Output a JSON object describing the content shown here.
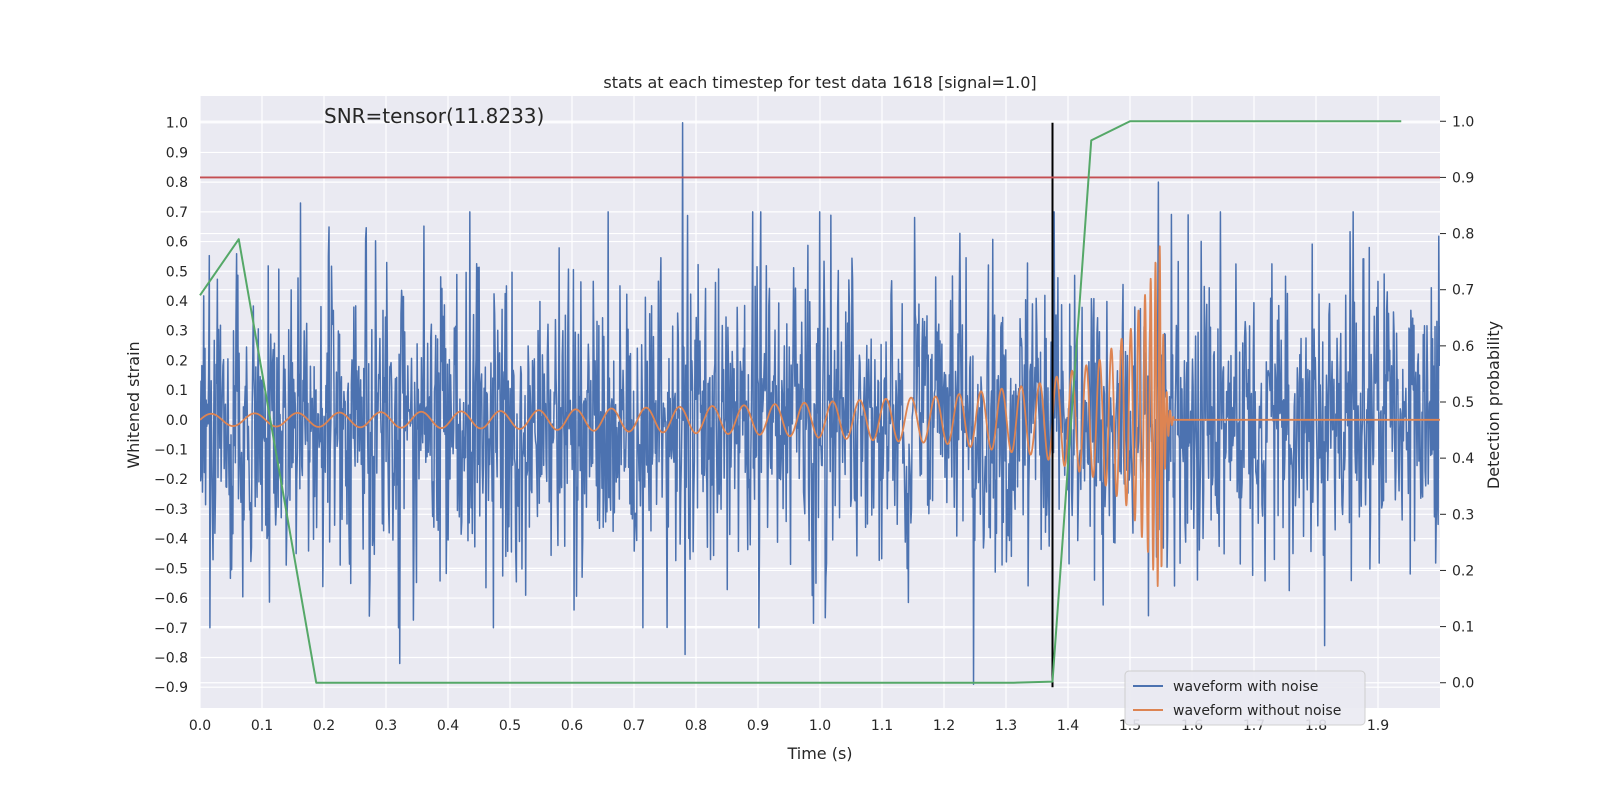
{
  "chart_data": {
    "type": "line",
    "title": "stats at each timestep for test data 1618 [signal=1.0]",
    "xlabel": "Time (s)",
    "ylabel_left": "Whitened strain",
    "ylabel_right": "Detection probability",
    "annotation": "SNR=tensor(11.8233)",
    "xlim": [
      0.0,
      2.0
    ],
    "ylim_left": [
      -0.97,
      1.09
    ],
    "ylim_right": [
      -0.045,
      1.045
    ],
    "x_ticks": [
      0.0,
      0.1,
      0.2,
      0.3,
      0.4,
      0.5,
      0.6,
      0.7,
      0.8,
      0.9,
      1.0,
      1.1,
      1.2,
      1.3,
      1.4,
      1.5,
      1.6,
      1.7,
      1.8,
      1.9
    ],
    "x_tick_labels": [
      "0.0",
      "0.1",
      "0.2",
      "0.3",
      "0.4",
      "0.5",
      "0.6",
      "0.7",
      "0.8",
      "0.9",
      "1.0",
      "1.1",
      "1.2",
      "1.3",
      "1.4",
      "1.5",
      "1.6",
      "1.7",
      "1.8",
      "1.9"
    ],
    "y_left_ticks": [
      -0.9,
      -0.8,
      -0.7,
      -0.6,
      -0.5,
      -0.4,
      -0.3,
      -0.2,
      -0.1,
      0.0,
      0.1,
      0.2,
      0.3,
      0.4,
      0.5,
      0.6,
      0.7,
      0.8,
      0.9,
      1.0
    ],
    "y_left_tick_labels": [
      "−0.9",
      "−0.8",
      "−0.7",
      "−0.6",
      "−0.5",
      "−0.4",
      "−0.3",
      "−0.2",
      "−0.1",
      "0.0",
      "0.1",
      "0.2",
      "0.3",
      "0.4",
      "0.5",
      "0.6",
      "0.7",
      "0.8",
      "0.9",
      "1.0"
    ],
    "y_right_ticks": [
      0.0,
      0.1,
      0.2,
      0.3,
      0.4,
      0.5,
      0.6,
      0.7,
      0.8,
      0.9,
      1.0
    ],
    "y_right_tick_labels": [
      "0.0",
      "0.1",
      "0.2",
      "0.3",
      "0.4",
      "0.5",
      "0.6",
      "0.7",
      "0.8",
      "0.9",
      "1.0"
    ],
    "series": [
      {
        "name": "waveform with noise",
        "color": "#4c72b0",
        "axis": "left",
        "generator": "noise",
        "n": 2000,
        "std": 0.25,
        "seed": 1618,
        "x_range": [
          0.0,
          2.0
        ],
        "peaks": [
          [
            0.778,
            1.0
          ],
          [
            0.782,
            -0.79
          ],
          [
            1.248,
            -0.89
          ],
          [
            1.546,
            0.8
          ],
          [
            0.322,
            -0.82
          ],
          [
            0.162,
            0.73
          ],
          [
            1.814,
            -0.76
          ]
        ]
      },
      {
        "name": "waveform without noise",
        "color": "#dd8452",
        "axis": "left",
        "generator": "chirp",
        "t_merge": 1.55,
        "ringdown_end": 1.57,
        "x_range": [
          0.0,
          2.0
        ],
        "amp_points": [
          [
            0.0,
            0.02
          ],
          [
            0.5,
            0.03
          ],
          [
            0.9,
            0.05
          ],
          [
            1.2,
            0.08
          ],
          [
            1.35,
            0.12
          ],
          [
            1.45,
            0.2
          ],
          [
            1.5,
            0.3
          ],
          [
            1.53,
            0.45
          ],
          [
            1.55,
            0.6
          ]
        ],
        "freq_points": [
          [
            0.0,
            14
          ],
          [
            0.5,
            16
          ],
          [
            0.9,
            20
          ],
          [
            1.2,
            26
          ],
          [
            1.35,
            34
          ],
          [
            1.45,
            48
          ],
          [
            1.5,
            70
          ],
          [
            1.53,
            110
          ],
          [
            1.55,
            160
          ]
        ]
      },
      {
        "name": "detection probability",
        "color": "#55a868",
        "axis": "right",
        "x": [
          0.0,
          0.0625,
          0.1875,
          0.3125,
          0.4375,
          0.5625,
          0.6875,
          0.8125,
          0.9375,
          1.0625,
          1.1875,
          1.3125,
          1.375,
          1.4375,
          1.5,
          1.5625,
          1.6875,
          1.8125,
          1.9375
        ],
        "y": [
          0.69,
          0.79,
          0.0,
          0.0,
          0.0,
          0.0,
          0.0,
          0.0,
          0.0,
          0.0,
          0.0,
          0.0,
          0.002,
          0.966,
          1.0,
          1.0,
          1.0,
          1.0,
          1.0
        ]
      }
    ],
    "threshold": {
      "value": 0.9,
      "axis": "right",
      "color": "#c44e52"
    },
    "merger_marker": {
      "x": 1.375,
      "y_range": [
        -0.9,
        1.0
      ],
      "color": "#000000"
    },
    "legend": {
      "position": "lower-right",
      "entries": [
        {
          "label": "waveform with noise",
          "color": "#4c72b0"
        },
        {
          "label": "waveform without noise",
          "color": "#dd8452"
        }
      ]
    },
    "grid": true,
    "colors": {
      "plot_bg": "#eaeaf2",
      "grid": "#ffffff",
      "text": "#262626"
    }
  }
}
